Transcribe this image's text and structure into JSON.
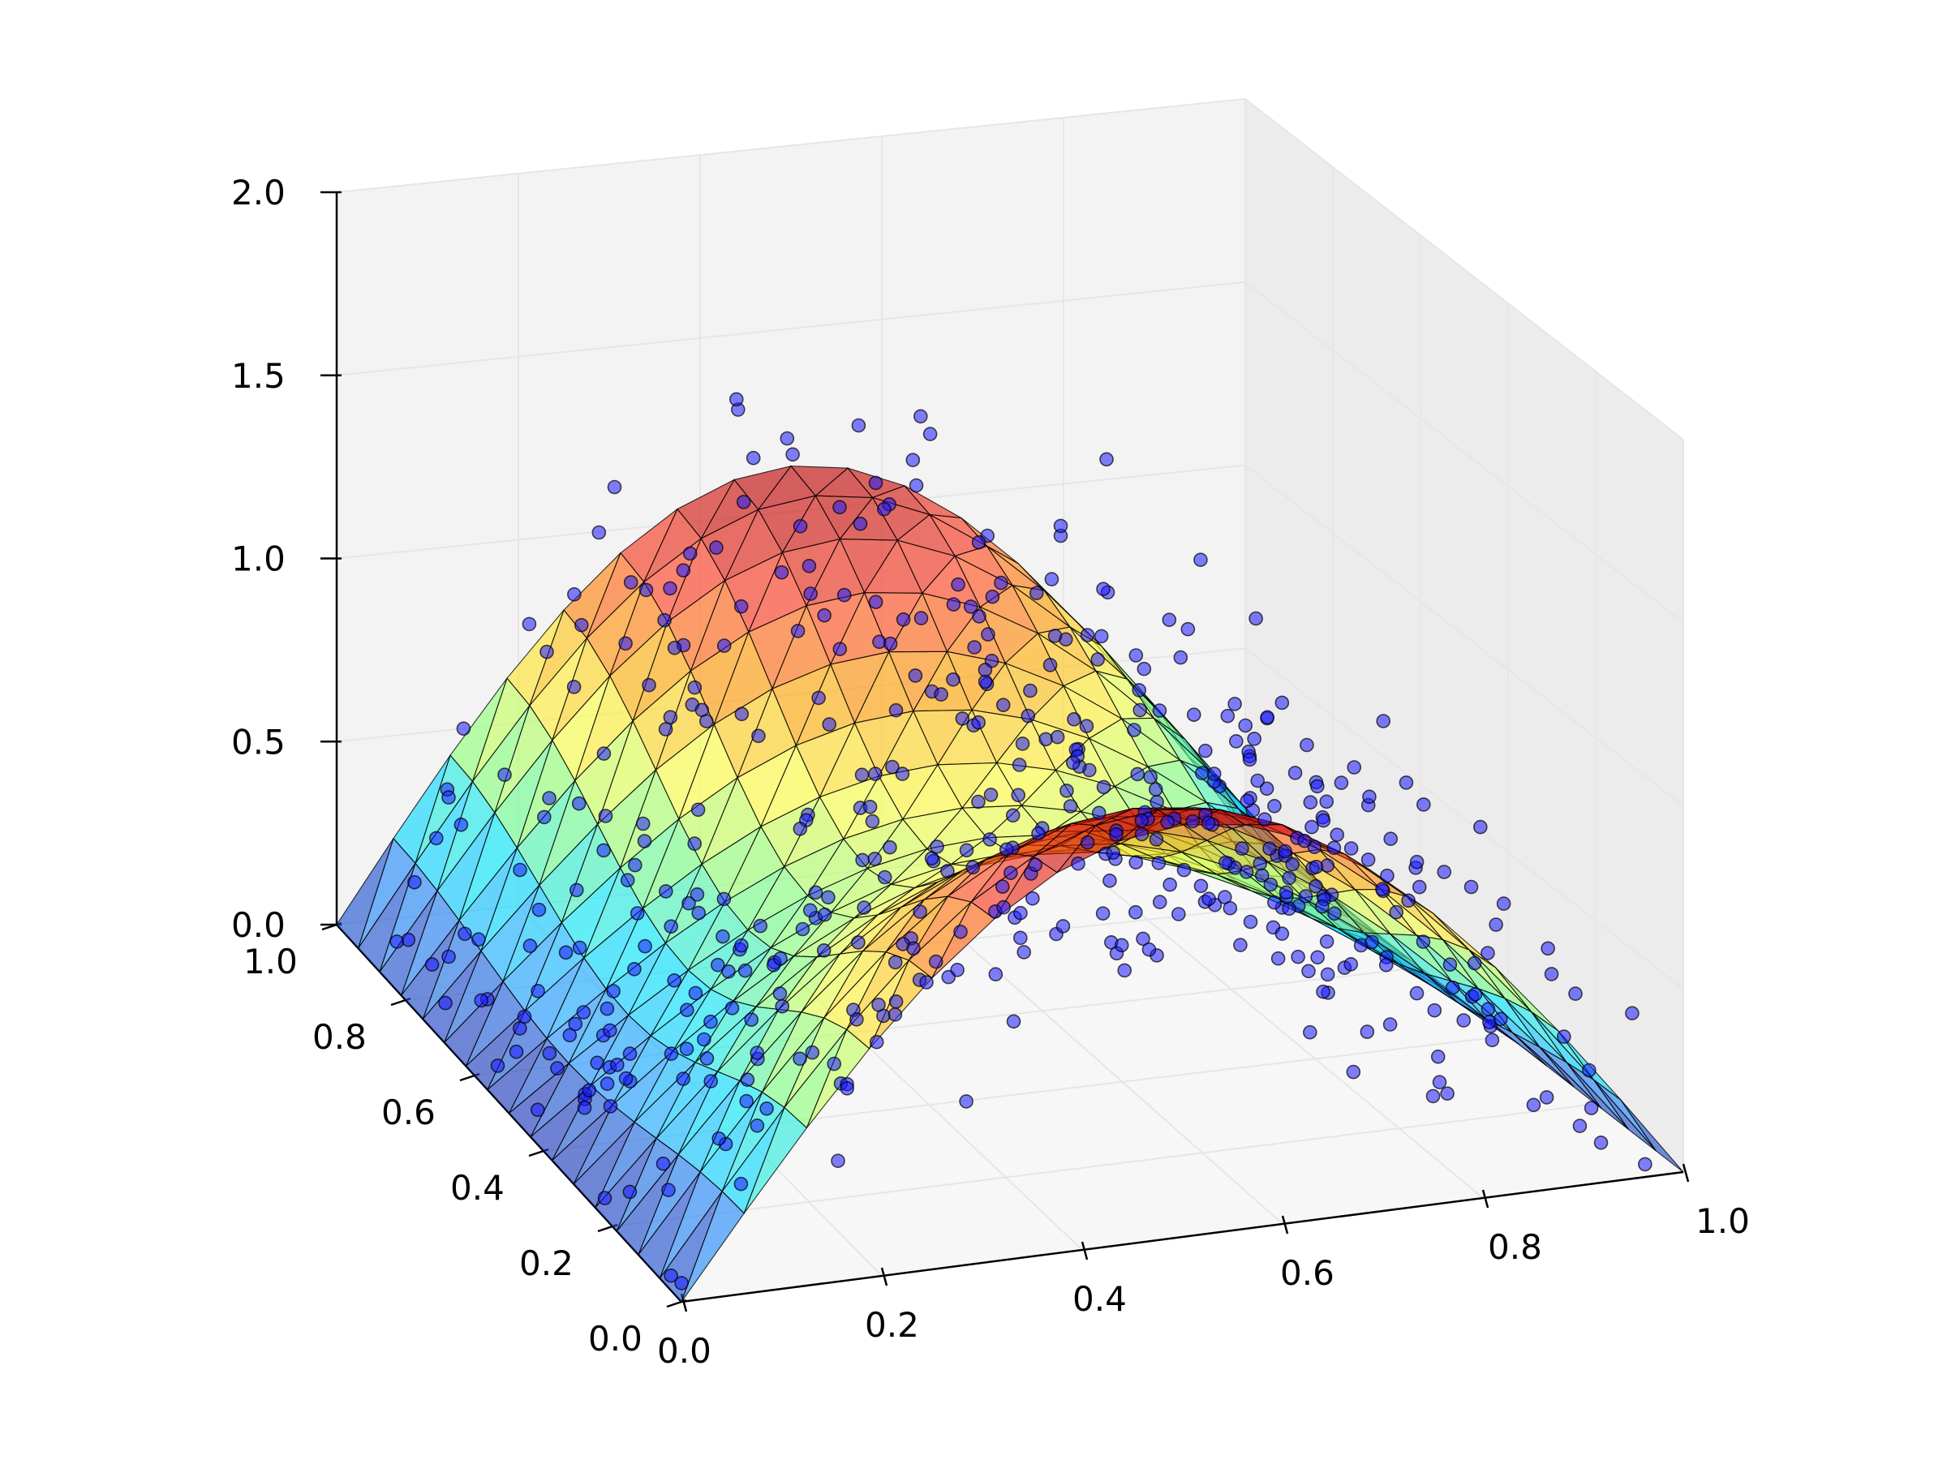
{
  "chart_data": {
    "type": "surface3d",
    "title": "",
    "xlabel": "",
    "ylabel": "",
    "zlabel": "",
    "xlim": [
      0.0,
      1.0
    ],
    "ylim": [
      0.0,
      1.0
    ],
    "zlim": [
      0.0,
      2.0
    ],
    "x_ticks": [
      "0.0",
      "0.2",
      "0.4",
      "0.6",
      "0.8",
      "1.0"
    ],
    "y_ticks": [
      "0.0",
      "0.2",
      "0.4",
      "0.6",
      "0.8",
      "1.0"
    ],
    "z_ticks": [
      "0.0",
      "0.5",
      "1.0",
      "1.5",
      "2.0"
    ],
    "grid": true,
    "surface": {
      "name": "",
      "grid_size": 16,
      "function": "z = 0.75 * (1.15 + 0.35*cos(2*pi*y)) * sin(pi*x)",
      "colormap": [
        "#1a1aa6",
        "#1e90ff",
        "#00e5ff",
        "#7fff7f",
        "#ffff40",
        "#ffa500",
        "#ff3b1f",
        "#c00000"
      ],
      "alpha": 0.62,
      "edge_color": "#000000"
    },
    "scatter": {
      "name": "",
      "count": 500,
      "noise_sd": 0.22,
      "color": "#1a1aff",
      "edge_color": "#000000",
      "alpha": 0.55
    },
    "pane_color": "#f3f3f3",
    "grid_color": "#e6e6e6"
  }
}
